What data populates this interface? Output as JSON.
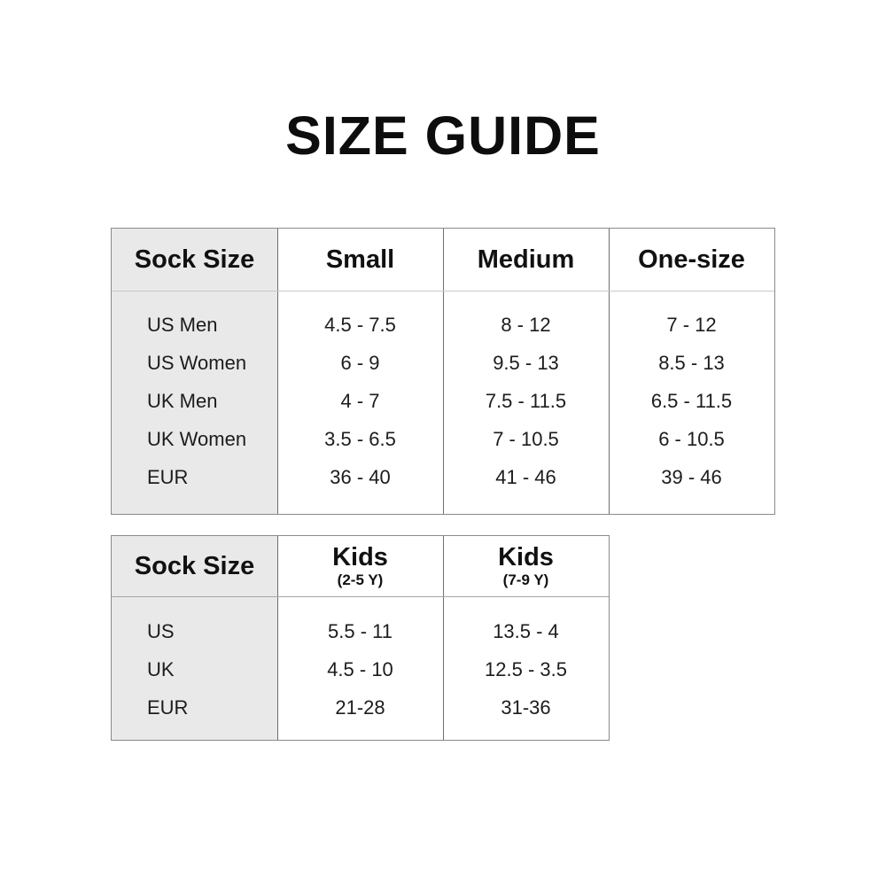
{
  "page": {
    "title": "SIZE GUIDE"
  },
  "colors": {
    "background": "#ffffff",
    "label_column_bg": "#e9e9e9",
    "table_border": "#8a8a8a",
    "column_divider": "#6f6f6f",
    "header_divider": "#c9c9c9",
    "text": "#111111"
  },
  "tables": [
    {
      "name": "adult-sock-sizes",
      "corner_label": "Sock Size",
      "columns": [
        {
          "label": "Small",
          "sublabel": ""
        },
        {
          "label": "Medium",
          "sublabel": ""
        },
        {
          "label": "One-size",
          "sublabel": ""
        }
      ],
      "rows": [
        {
          "label": "US Men",
          "values": [
            "4.5 - 7.5",
            "8 - 12",
            "7 - 12"
          ]
        },
        {
          "label": "US Women",
          "values": [
            "6 - 9",
            "9.5 - 13",
            "8.5 - 13"
          ]
        },
        {
          "label": "UK Men",
          "values": [
            "4 - 7",
            "7.5 - 11.5",
            "6.5 - 11.5"
          ]
        },
        {
          "label": "UK Women",
          "values": [
            "3.5 - 6.5",
            "7 - 10.5",
            "6 - 10.5"
          ]
        },
        {
          "label": "EUR",
          "values": [
            "36 - 40",
            "41 - 46",
            "39 - 46"
          ]
        }
      ]
    },
    {
      "name": "kids-sock-sizes",
      "corner_label": "Sock Size",
      "columns": [
        {
          "label": "Kids",
          "sublabel": "(2-5 Y)"
        },
        {
          "label": "Kids",
          "sublabel": "(7-9 Y)"
        }
      ],
      "rows": [
        {
          "label": "US",
          "values": [
            "5.5 - 11",
            "13.5 - 4"
          ]
        },
        {
          "label": "UK",
          "values": [
            "4.5 - 10",
            "12.5 - 3.5"
          ]
        },
        {
          "label": "EUR",
          "values": [
            "21-28",
            "31-36"
          ]
        }
      ]
    }
  ]
}
